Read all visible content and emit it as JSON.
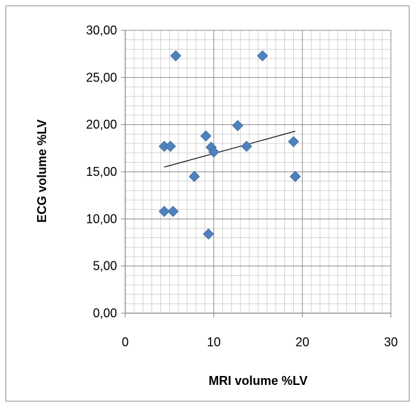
{
  "chart_data": {
    "type": "scatter",
    "xlabel": "MRI volume %LV",
    "ylabel": "ECG volume %LV",
    "xlim": [
      0,
      30
    ],
    "ylim": [
      0,
      30
    ],
    "x_ticks": [
      0,
      10,
      20,
      30
    ],
    "y_ticks": [
      0,
      5,
      10,
      15,
      20,
      25,
      30
    ],
    "x_tick_labels": [
      "0",
      "10",
      "20",
      "30"
    ],
    "y_tick_labels": [
      "0,00",
      "5,00",
      "10,00",
      "15,00",
      "20,00",
      "25,00",
      "30,00"
    ],
    "grid": true,
    "minor_grid": true,
    "legend": "none",
    "marker": "diamond",
    "marker_color": "#4f81bd",
    "points": [
      {
        "x": 5.7,
        "y": 27.3
      },
      {
        "x": 15.5,
        "y": 27.3
      },
      {
        "x": 12.7,
        "y": 19.9
      },
      {
        "x": 9.1,
        "y": 18.8
      },
      {
        "x": 4.4,
        "y": 17.7
      },
      {
        "x": 5.1,
        "y": 17.7
      },
      {
        "x": 9.7,
        "y": 17.6
      },
      {
        "x": 13.7,
        "y": 17.7
      },
      {
        "x": 10.0,
        "y": 17.1
      },
      {
        "x": 19.0,
        "y": 18.2
      },
      {
        "x": 7.8,
        "y": 14.5
      },
      {
        "x": 19.2,
        "y": 14.5
      },
      {
        "x": 4.4,
        "y": 10.8
      },
      {
        "x": 5.4,
        "y": 10.8
      },
      {
        "x": 9.4,
        "y": 8.4
      }
    ],
    "trendline": {
      "type": "linear",
      "x": [
        4.4,
        19.2
      ],
      "y": [
        15.5,
        19.3
      ],
      "color": "#000000"
    }
  }
}
